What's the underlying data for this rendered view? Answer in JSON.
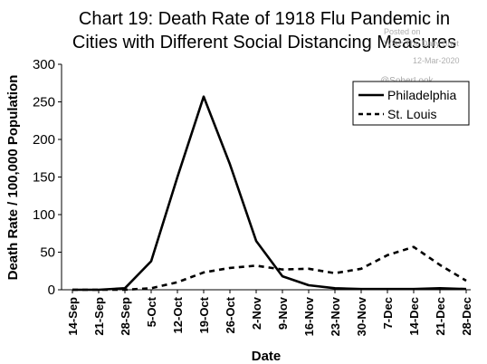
{
  "chart_data": {
    "type": "line",
    "title_lines": [
      "Chart 19: Death Rate of 1918 Flu Pandemic in",
      "Cities with Different Social Distancing Measures"
    ],
    "xlabel": "Date",
    "ylabel": "Death Rate / 100,000 Population",
    "categories": [
      "14-Sep",
      "21-Sep",
      "28-Sep",
      "5-Oct",
      "12-Oct",
      "19-Oct",
      "26-Oct",
      "2-Nov",
      "9-Nov",
      "16-Nov",
      "23-Nov",
      "30-Nov",
      "7-Dec",
      "14-Dec",
      "21-Dec",
      "28-Dec"
    ],
    "ylim": [
      0,
      300
    ],
    "yticks": [
      0,
      50,
      100,
      150,
      200,
      250,
      300
    ],
    "grid": false,
    "legend_position": "top-right",
    "series": [
      {
        "name": "Philadelphia",
        "style": "solid",
        "values": [
          0,
          0,
          2,
          38,
          150,
          257,
          167,
          65,
          18,
          6,
          2,
          1,
          1,
          1,
          2,
          1
        ]
      },
      {
        "name": "St. Louis",
        "style": "dashed",
        "values": [
          0,
          0,
          0,
          2,
          10,
          23,
          29,
          32,
          27,
          28,
          22,
          28,
          46,
          57,
          33,
          12
        ]
      }
    ]
  },
  "watermarks": {
    "posted": "Posted on",
    "source": "WSJ: The Daily Shot",
    "date": "12-Mar-2020",
    "handle": "@SoberLook"
  },
  "colors": {
    "line": "#000000",
    "background": "#ffffff"
  }
}
